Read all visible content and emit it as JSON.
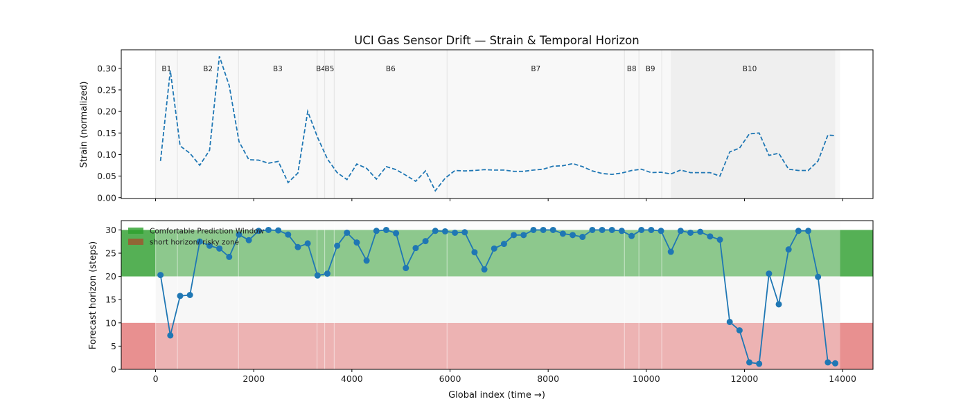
{
  "chart_data": [
    {
      "type": "line",
      "title": "UCI Gas Sensor Drift — Strain & Temporal Horizon",
      "xlabel": "",
      "ylabel": "Strain (normalized)",
      "xlim": [
        -700,
        14620
      ],
      "ylim": [
        -0.002,
        0.343
      ],
      "yticks": [
        "0.00",
        "0.05",
        "0.10",
        "0.15",
        "0.20",
        "0.25",
        "0.30"
      ],
      "xticks": [
        "0",
        "2000",
        "4000",
        "6000",
        "8000",
        "10000",
        "12000",
        "14000"
      ],
      "line_style": "dashed",
      "color": "#1f77b4",
      "batches": [
        {
          "label": "B1",
          "start": 0,
          "end": 445
        },
        {
          "label": "B2",
          "start": 445,
          "end": 1690
        },
        {
          "label": "B3",
          "start": 1690,
          "end": 3290
        },
        {
          "label": "B4",
          "start": 3290,
          "end": 3445
        },
        {
          "label": "B5",
          "start": 3445,
          "end": 3640
        },
        {
          "label": "B6",
          "start": 3640,
          "end": 5940
        },
        {
          "label": "B7",
          "start": 5940,
          "end": 9555
        },
        {
          "label": "B8",
          "start": 9555,
          "end": 9850
        },
        {
          "label": "B9",
          "start": 9850,
          "end": 10315
        },
        {
          "label": "B10",
          "start": 10315,
          "end": 13900
        }
      ],
      "highlight_span": [
        10500,
        13850
      ],
      "x": [
        100,
        300,
        500,
        700,
        900,
        1100,
        1300,
        1500,
        1700,
        1900,
        2100,
        2300,
        2500,
        2700,
        2900,
        3100,
        3300,
        3500,
        3700,
        3900,
        4100,
        4300,
        4500,
        4700,
        4900,
        5100,
        5300,
        5500,
        5700,
        5900,
        6100,
        6300,
        6500,
        6700,
        6900,
        7100,
        7300,
        7500,
        7700,
        7900,
        8100,
        8300,
        8500,
        8700,
        8900,
        9100,
        9300,
        9500,
        9700,
        9900,
        10100,
        10300,
        10500,
        10700,
        10900,
        11100,
        11300,
        11500,
        11700,
        11900,
        12100,
        12300,
        12500,
        12700,
        12900,
        13100,
        13300,
        13500,
        13700,
        13850
      ],
      "values": [
        0.085,
        0.295,
        0.12,
        0.103,
        0.075,
        0.11,
        0.328,
        0.26,
        0.13,
        0.088,
        0.087,
        0.08,
        0.084,
        0.035,
        0.057,
        0.2,
        0.14,
        0.09,
        0.058,
        0.042,
        0.078,
        0.068,
        0.043,
        0.072,
        0.065,
        0.052,
        0.038,
        0.062,
        0.016,
        0.045,
        0.063,
        0.062,
        0.063,
        0.065,
        0.064,
        0.064,
        0.061,
        0.061,
        0.064,
        0.066,
        0.073,
        0.074,
        0.079,
        0.072,
        0.062,
        0.056,
        0.054,
        0.057,
        0.063,
        0.066,
        0.058,
        0.059,
        0.055,
        0.064,
        0.058,
        0.058,
        0.058,
        0.05,
        0.106,
        0.115,
        0.148,
        0.15,
        0.098,
        0.103,
        0.066,
        0.063,
        0.063,
        0.085,
        0.145,
        0.144
      ]
    },
    {
      "type": "line",
      "xlabel": "Global index (time →)",
      "ylabel": "Forecast horizon (steps)",
      "xlim": [
        -700,
        14620
      ],
      "ylim": [
        0,
        32
      ],
      "yticks": [
        "0",
        "5",
        "10",
        "15",
        "20",
        "25",
        "30"
      ],
      "xticks": [
        "0",
        "2000",
        "4000",
        "6000",
        "8000",
        "10000",
        "12000",
        "14000"
      ],
      "markers": "circle",
      "color": "#1f77b4",
      "bands": [
        {
          "label": "Comfortable Prediction Window",
          "from": 20,
          "to": 30,
          "color": "#2ca02c"
        },
        {
          "label": "short horizon/ risky zone",
          "from": 0,
          "to": 10,
          "color": "#d62728"
        }
      ],
      "legend_position": "upper-left",
      "x": [
        100,
        300,
        500,
        700,
        900,
        1100,
        1300,
        1500,
        1700,
        1900,
        2100,
        2300,
        2500,
        2700,
        2900,
        3100,
        3300,
        3500,
        3700,
        3900,
        4100,
        4300,
        4500,
        4700,
        4900,
        5100,
        5300,
        5500,
        5700,
        5900,
        6100,
        6300,
        6500,
        6700,
        6900,
        7100,
        7300,
        7500,
        7700,
        7900,
        8100,
        8300,
        8500,
        8700,
        8900,
        9100,
        9300,
        9500,
        9700,
        9900,
        10100,
        10300,
        10500,
        10700,
        10900,
        11100,
        11300,
        11500,
        11700,
        11900,
        12100,
        12300,
        12500,
        12700,
        12900,
        13100,
        13300,
        13500,
        13700,
        13850
      ],
      "values": [
        20.3,
        7.3,
        15.8,
        16,
        27.5,
        26.6,
        26,
        24.2,
        29,
        27.8,
        29.8,
        30,
        29.9,
        29,
        26.3,
        27.1,
        20.2,
        20.6,
        26.6,
        29.4,
        27.3,
        23.4,
        29.8,
        30,
        29.3,
        21.8,
        26.1,
        27.6,
        29.8,
        29.7,
        29.4,
        29.5,
        25.2,
        21.5,
        26,
        27,
        28.9,
        28.9,
        30,
        30,
        30,
        29.2,
        28.9,
        28.5,
        30,
        30,
        30,
        29.8,
        28.7,
        30,
        30,
        29.8,
        25.3,
        29.8,
        29.4,
        29.6,
        28.6,
        27.9,
        10.2,
        8.4,
        1.5,
        1.2,
        20.6,
        14,
        25.8,
        29.8,
        29.8,
        19.9,
        1.5,
        1.3
      ]
    }
  ]
}
